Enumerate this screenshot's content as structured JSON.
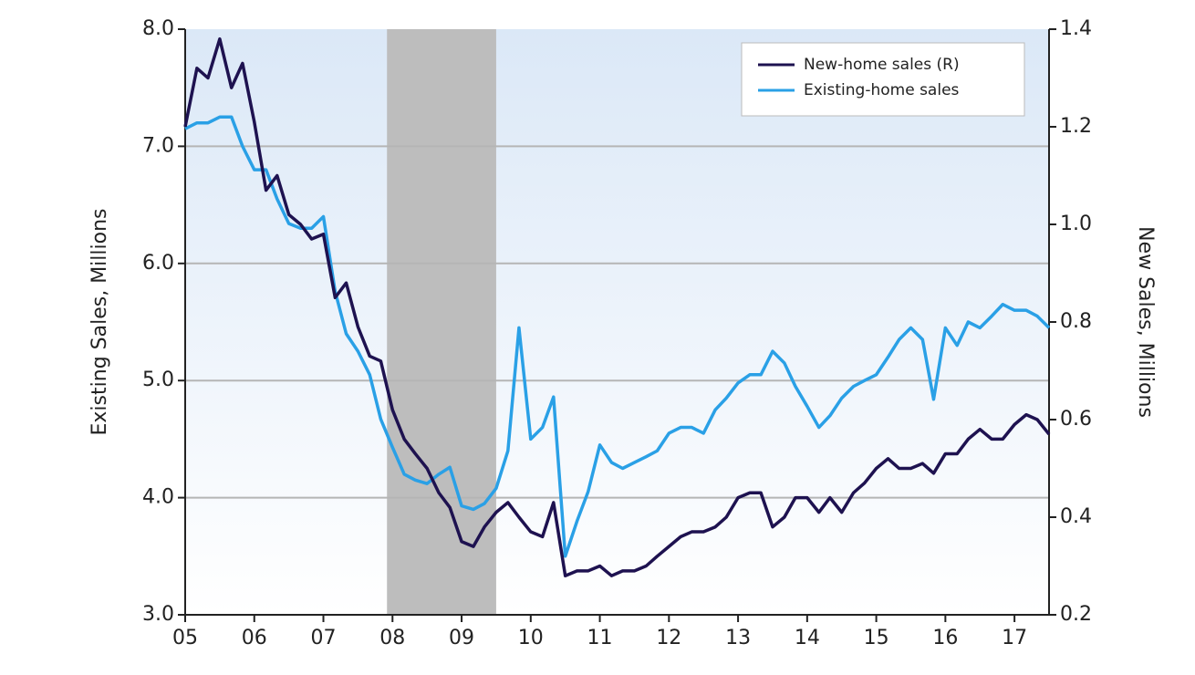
{
  "chart_data": {
    "type": "line",
    "y_label": "Existing Sales, Millions",
    "y2_label": "New Sales, Millions",
    "x": [
      2005.0,
      2005.17,
      2005.33,
      2005.5,
      2005.67,
      2005.83,
      2006.0,
      2006.17,
      2006.33,
      2006.5,
      2006.67,
      2006.83,
      2007.0,
      2007.17,
      2007.33,
      2007.5,
      2007.67,
      2007.83,
      2008.0,
      2008.17,
      2008.33,
      2008.5,
      2008.67,
      2008.83,
      2009.0,
      2009.17,
      2009.33,
      2009.5,
      2009.67,
      2009.83,
      2010.0,
      2010.17,
      2010.33,
      2010.5,
      2010.67,
      2010.83,
      2011.0,
      2011.17,
      2011.33,
      2011.5,
      2011.67,
      2011.83,
      2012.0,
      2012.17,
      2012.33,
      2012.5,
      2012.67,
      2012.83,
      2013.0,
      2013.17,
      2013.33,
      2013.5,
      2013.67,
      2013.83,
      2014.0,
      2014.17,
      2014.33,
      2014.5,
      2014.67,
      2014.83,
      2015.0,
      2015.17,
      2015.33,
      2015.5,
      2015.67,
      2015.83,
      2016.0,
      2016.17,
      2016.33,
      2016.5,
      2016.67,
      2016.83,
      2017.0,
      2017.17,
      2017.33,
      2017.5
    ],
    "series": [
      {
        "name": "New-home sales (R)",
        "color": "#1e1250",
        "axis": "y2",
        "values": [
          1.2,
          1.32,
          1.3,
          1.38,
          1.28,
          1.33,
          1.21,
          1.07,
          1.1,
          1.02,
          1.0,
          0.97,
          0.98,
          0.85,
          0.88,
          0.79,
          0.73,
          0.72,
          0.62,
          0.56,
          0.53,
          0.5,
          0.45,
          0.42,
          0.35,
          0.34,
          0.38,
          0.41,
          0.43,
          0.4,
          0.37,
          0.36,
          0.43,
          0.28,
          0.29,
          0.29,
          0.3,
          0.28,
          0.29,
          0.29,
          0.3,
          0.32,
          0.34,
          0.36,
          0.37,
          0.37,
          0.38,
          0.4,
          0.44,
          0.45,
          0.45,
          0.38,
          0.4,
          0.44,
          0.44,
          0.41,
          0.44,
          0.41,
          0.45,
          0.47,
          0.5,
          0.52,
          0.5,
          0.5,
          0.51,
          0.49,
          0.53,
          0.53,
          0.56,
          0.58,
          0.56,
          0.56,
          0.59,
          0.61,
          0.6,
          0.57
        ]
      },
      {
        "name": "Existing-home sales",
        "color": "#2aa0e6",
        "values": [
          7.15,
          7.2,
          7.2,
          7.25,
          7.25,
          7.0,
          6.8,
          6.8,
          6.55,
          6.34,
          6.3,
          6.3,
          6.4,
          5.76,
          5.4,
          5.25,
          5.05,
          4.67,
          4.43,
          4.2,
          4.15,
          4.12,
          4.2,
          4.26,
          3.93,
          3.9,
          3.95,
          4.08,
          4.4,
          5.45,
          4.5,
          4.6,
          4.86,
          3.5,
          3.8,
          4.05,
          4.45,
          4.3,
          4.25,
          4.3,
          4.35,
          4.4,
          4.55,
          4.6,
          4.6,
          4.55,
          4.75,
          4.85,
          4.98,
          5.05,
          5.05,
          5.25,
          5.15,
          4.95,
          4.78,
          4.6,
          4.7,
          4.85,
          4.95,
          5.0,
          5.05,
          5.2,
          5.35,
          5.45,
          5.35,
          4.84,
          5.45,
          5.3,
          5.5,
          5.45,
          5.55,
          5.65,
          5.6,
          5.6,
          5.55,
          5.45
        ]
      }
    ],
    "recession": [
      2007.92,
      2009.5
    ],
    "xlim": [
      2005,
      2017.5
    ],
    "xticks": [
      {
        "value": 2005,
        "label": "05"
      },
      {
        "value": 2006,
        "label": "06"
      },
      {
        "value": 2007,
        "label": "07"
      },
      {
        "value": 2008,
        "label": "08"
      },
      {
        "value": 2009,
        "label": "09"
      },
      {
        "value": 2010,
        "label": "10"
      },
      {
        "value": 2011,
        "label": "11"
      },
      {
        "value": 2012,
        "label": "12"
      },
      {
        "value": 2013,
        "label": "13"
      },
      {
        "value": 2014,
        "label": "14"
      },
      {
        "value": 2015,
        "label": "15"
      },
      {
        "value": 2016,
        "label": "16"
      },
      {
        "value": 2017,
        "label": "17"
      }
    ],
    "ylim": [
      3,
      8
    ],
    "yticks": [
      {
        "value": 3,
        "label": "3.0"
      },
      {
        "value": 4,
        "label": "4.0"
      },
      {
        "value": 5,
        "label": "5.0"
      },
      {
        "value": 6,
        "label": "6.0"
      },
      {
        "value": 7,
        "label": "7.0"
      },
      {
        "value": 8,
        "label": "8.0"
      }
    ],
    "y2lim": [
      0.2,
      1.4
    ],
    "y2ticks": [
      0.2,
      0.4,
      0.6,
      0.8,
      {
        "value": 1.0,
        "label": "1.0"
      },
      1.2,
      1.4
    ],
    "grid": true,
    "legend": "top-right"
  }
}
